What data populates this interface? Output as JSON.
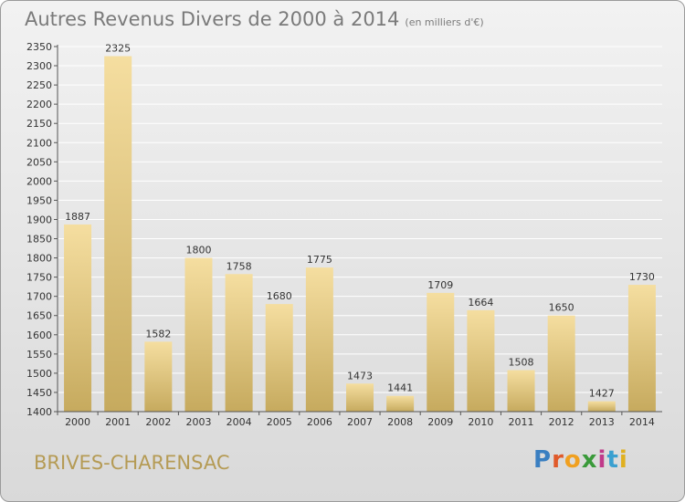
{
  "header": {
    "title": "Autres Revenus Divers de 2000 à 2014",
    "subtitle": "(en milliers d'€)"
  },
  "footer": {
    "city": "BRIVES-CHARENSAC",
    "logo": [
      "P",
      "r",
      "o",
      "x",
      "i",
      "t",
      "i"
    ],
    "logo_colors": [
      "#3a7fc1",
      "#e05a2a",
      "#f0a020",
      "#3a9a3a",
      "#c03a8a",
      "#3aa0d0",
      "#e0b020"
    ]
  },
  "colors": {
    "bar_light": "#f5dea0",
    "bar_dark": "#c6aa5e",
    "grid": "#ffffff",
    "axis": "#555555"
  },
  "chart_data": {
    "type": "bar",
    "title": "Autres Revenus Divers de 2000 à 2014",
    "subtitle": "(en milliers d'€)",
    "categories": [
      "2000",
      "2001",
      "2002",
      "2003",
      "2004",
      "2005",
      "2006",
      "2007",
      "2008",
      "2009",
      "2010",
      "2011",
      "2012",
      "2013",
      "2014"
    ],
    "values": [
      1887,
      2325,
      1582,
      1800,
      1758,
      1680,
      1775,
      1473,
      1441,
      1709,
      1664,
      1508,
      1650,
      1427,
      1730
    ],
    "ylim": [
      1400,
      2350
    ],
    "yticks": [
      1400,
      1450,
      1500,
      1550,
      1600,
      1650,
      1700,
      1750,
      1800,
      1850,
      1900,
      1950,
      2000,
      2050,
      2100,
      2150,
      2200,
      2250,
      2300,
      2350
    ],
    "grid": true,
    "data_labels": true
  }
}
